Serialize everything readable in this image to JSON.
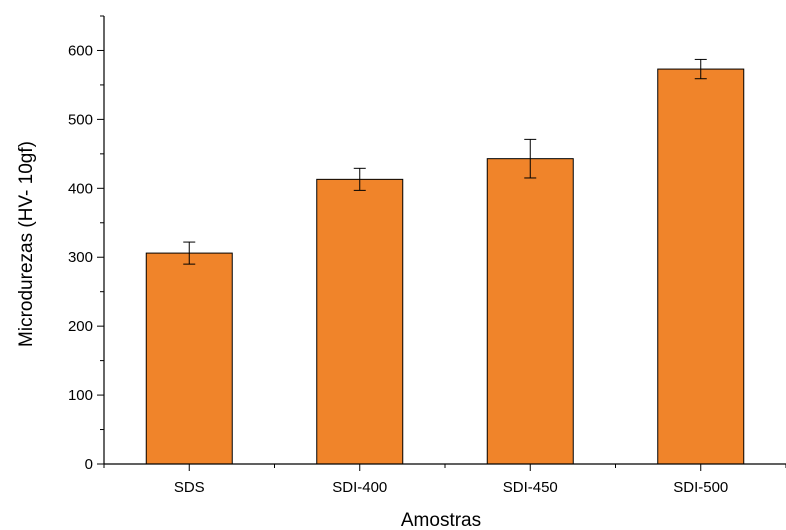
{
  "chart_data": {
    "type": "bar",
    "title": "",
    "xlabel": "Amostras",
    "ylabel": "Microdurezas (HV- 10gf)",
    "categories": [
      "SDS",
      "SDI-400",
      "SDI-450",
      "SDI-500"
    ],
    "values": [
      306,
      413,
      443,
      573
    ],
    "errors": [
      16,
      16,
      28,
      14
    ],
    "ylim": [
      0,
      650
    ],
    "yticks": [
      0,
      100,
      200,
      300,
      400,
      500,
      600
    ],
    "ytick_labels": [
      "0",
      "100",
      "200",
      "300",
      "400",
      "500",
      "600"
    ],
    "grid": false,
    "legend": "none",
    "colors": {
      "bar_fill": "#f0842a",
      "bar_stroke": "#000000",
      "axis": "#000000"
    }
  }
}
